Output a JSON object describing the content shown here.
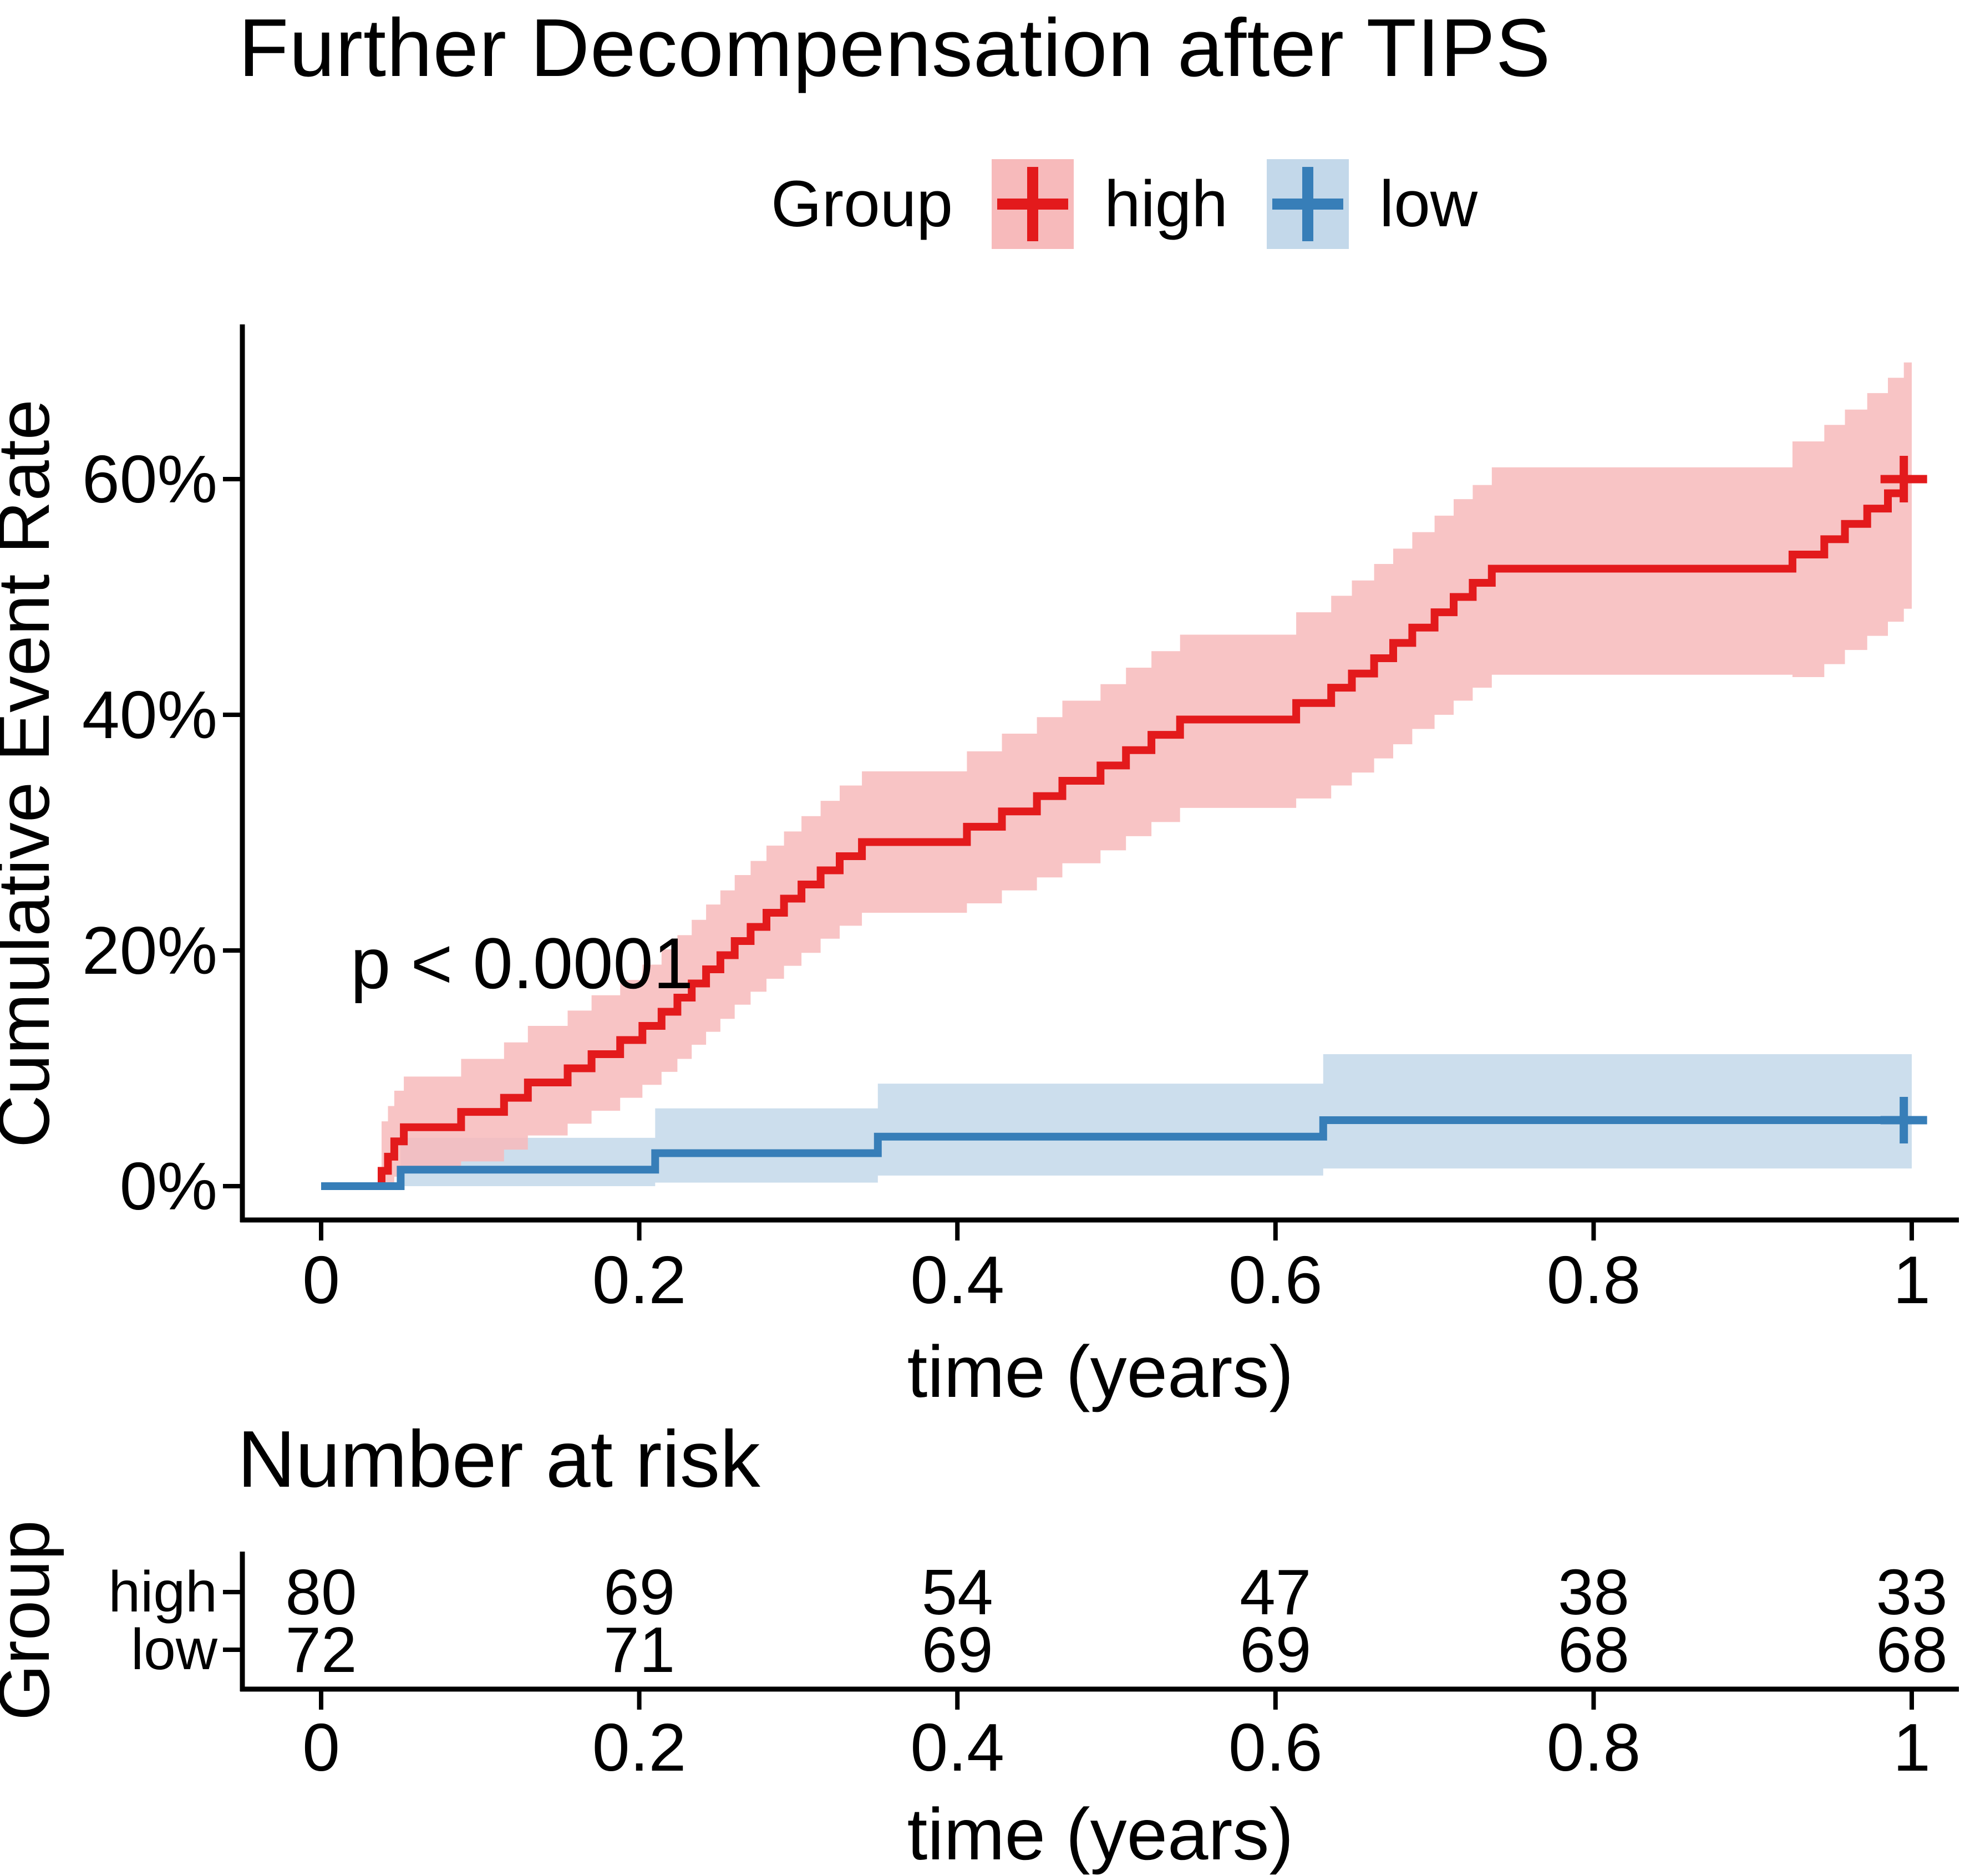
{
  "legend": {
    "title": "Group",
    "items": [
      "high",
      "low"
    ]
  },
  "y_axis": {
    "label": "Cumulative Event Rate",
    "tick_labels": [
      "0%",
      "20%",
      "40%",
      "60%"
    ],
    "tick_values": [
      0,
      20,
      40,
      60
    ]
  },
  "x_axis": {
    "label": "time (years)",
    "tick_labels": [
      "0",
      "0.2",
      "0.4",
      "0.6",
      "0.8",
      "1"
    ],
    "tick_values": [
      0,
      0.2,
      0.4,
      0.6,
      0.8,
      1
    ]
  },
  "risk_table": {
    "title": "Number at risk",
    "axis_label": "Group",
    "x_label": "time (years)",
    "rows": [
      {
        "label": "high",
        "color": "#e31a1c",
        "values": [
          "80",
          "69",
          "54",
          "47",
          "38",
          "33"
        ]
      },
      {
        "label": "low",
        "color": "#377eb8",
        "values": [
          "72",
          "71",
          "69",
          "69",
          "68",
          "68"
        ]
      }
    ]
  },
  "chart_data": {
    "type": "line",
    "subtype": "kaplan-meier-cumulative-event-step-curves-with-confidence-bands",
    "title": "Further Decompensation after TIPS",
    "xlabel": "time (years)",
    "ylabel": "Cumulative Event Rate",
    "xlim": [
      0,
      1.02
    ],
    "ylim": [
      0,
      72
    ],
    "x_ticks": [
      0,
      0.2,
      0.4,
      0.6,
      0.8,
      1
    ],
    "y_ticks": [
      0,
      20,
      40,
      60
    ],
    "grid": false,
    "legend_position": "top",
    "annotation": {
      "text": "p < 0.0001",
      "x": 0.02,
      "y": 19
    },
    "series": [
      {
        "name": "high",
        "color": "#e31a1c",
        "band_color": "#f7babb",
        "points_format": [
          "time_years",
          "cumulative_event_pct",
          "ci_lower_pct",
          "ci_upper_pct"
        ],
        "points": [
          [
            0.0,
            0.0,
            0.0,
            0.0
          ],
          [
            0.038,
            1.3,
            0.0,
            5.5
          ],
          [
            0.042,
            2.5,
            0.0,
            6.8
          ],
          [
            0.046,
            3.8,
            0.8,
            8.1
          ],
          [
            0.052,
            5.0,
            1.1,
            9.3
          ],
          [
            0.088,
            6.3,
            2.1,
            10.8
          ],
          [
            0.115,
            7.5,
            3.1,
            12.2
          ],
          [
            0.13,
            8.8,
            4.3,
            13.6
          ],
          [
            0.155,
            10.0,
            5.3,
            14.9
          ],
          [
            0.17,
            11.2,
            6.4,
            16.2
          ],
          [
            0.188,
            12.4,
            7.5,
            17.5
          ],
          [
            0.202,
            13.6,
            8.6,
            18.8
          ],
          [
            0.214,
            14.8,
            9.7,
            20.1
          ],
          [
            0.224,
            16.0,
            10.8,
            21.3
          ],
          [
            0.233,
            17.2,
            12.0,
            22.6
          ],
          [
            0.242,
            18.4,
            13.1,
            23.9
          ],
          [
            0.251,
            19.6,
            14.2,
            25.1
          ],
          [
            0.26,
            20.8,
            15.4,
            26.4
          ],
          [
            0.27,
            22.0,
            16.5,
            27.6
          ],
          [
            0.28,
            23.2,
            17.6,
            28.9
          ],
          [
            0.291,
            24.4,
            18.7,
            30.1
          ],
          [
            0.302,
            25.6,
            19.8,
            31.4
          ],
          [
            0.314,
            26.8,
            21.0,
            32.7
          ],
          [
            0.326,
            28.0,
            22.1,
            34.0
          ],
          [
            0.34,
            29.2,
            23.2,
            35.2
          ],
          [
            0.406,
            30.5,
            24.0,
            36.9
          ],
          [
            0.428,
            31.8,
            25.1,
            38.4
          ],
          [
            0.45,
            33.1,
            26.2,
            39.8
          ],
          [
            0.466,
            34.4,
            27.4,
            41.2
          ],
          [
            0.49,
            35.7,
            28.5,
            42.6
          ],
          [
            0.506,
            37.0,
            29.7,
            44.0
          ],
          [
            0.522,
            38.3,
            30.9,
            45.4
          ],
          [
            0.54,
            39.6,
            32.1,
            46.8
          ],
          [
            0.613,
            41.0,
            32.9,
            48.7
          ],
          [
            0.635,
            42.3,
            34.0,
            50.1
          ],
          [
            0.648,
            43.5,
            35.1,
            51.4
          ],
          [
            0.662,
            44.8,
            36.3,
            52.8
          ],
          [
            0.674,
            46.1,
            37.5,
            54.1
          ],
          [
            0.686,
            47.4,
            38.8,
            55.5
          ],
          [
            0.7,
            48.7,
            40.0,
            56.9
          ],
          [
            0.712,
            50.0,
            41.2,
            58.3
          ],
          [
            0.724,
            51.2,
            42.3,
            59.5
          ],
          [
            0.736,
            52.4,
            43.4,
            61.0
          ],
          [
            0.925,
            53.6,
            43.2,
            63.2
          ],
          [
            0.945,
            54.9,
            44.3,
            64.6
          ],
          [
            0.958,
            56.2,
            45.5,
            65.9
          ],
          [
            0.972,
            57.5,
            46.7,
            67.3
          ],
          [
            0.985,
            58.8,
            47.9,
            68.6
          ],
          [
            0.995,
            60.0,
            49.0,
            69.9
          ],
          [
            1.0,
            60.0,
            49.0,
            69.9
          ]
        ],
        "censors": [
          [
            0.995,
            60.0
          ]
        ]
      },
      {
        "name": "low",
        "color": "#377eb8",
        "band_color": "#c3d8ea",
        "points_format": [
          "time_years",
          "cumulative_event_pct",
          "ci_lower_pct",
          "ci_upper_pct"
        ],
        "points": [
          [
            0.0,
            0.0,
            0.0,
            0.0
          ],
          [
            0.05,
            1.4,
            0.0,
            4.1
          ],
          [
            0.21,
            2.8,
            0.3,
            6.6
          ],
          [
            0.35,
            4.2,
            0.9,
            8.7
          ],
          [
            0.63,
            5.6,
            1.5,
            11.2
          ],
          [
            1.0,
            5.6,
            1.5,
            11.2
          ]
        ],
        "censors": [
          [
            0.995,
            5.6
          ]
        ]
      }
    ],
    "number_at_risk": {
      "times": [
        0,
        0.2,
        0.4,
        0.6,
        0.8,
        1
      ],
      "high": [
        80,
        69,
        54,
        47,
        38,
        33
      ],
      "low": [
        72,
        71,
        69,
        69,
        68,
        68
      ]
    }
  }
}
